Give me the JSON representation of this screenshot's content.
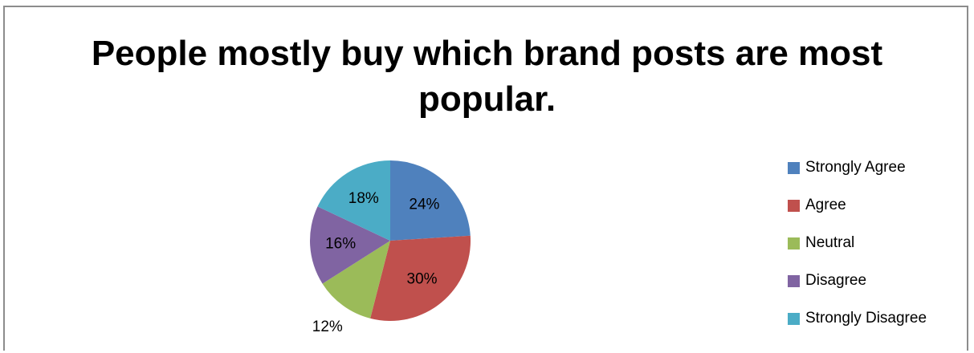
{
  "chart_data": {
    "type": "pie",
    "title": "People mostly buy which brand posts are most popular.",
    "title_lines": [
      "People mostly buy which brand posts are most",
      "popular."
    ],
    "slices": [
      {
        "label": "Strongly Agree",
        "value": 24,
        "display": "24%",
        "color": "#4f81bd"
      },
      {
        "label": "Agree",
        "value": 30,
        "display": "30%",
        "color": "#c0504d"
      },
      {
        "label": "Neutral",
        "value": 12,
        "display": "12%",
        "color": "#9bbb59"
      },
      {
        "label": "Disagree",
        "value": 16,
        "display": "16%",
        "color": "#8064a2"
      },
      {
        "label": "Strongly Disagree",
        "value": 18,
        "display": "18%",
        "color": "#4bacc6"
      }
    ],
    "legend_position": "right"
  }
}
